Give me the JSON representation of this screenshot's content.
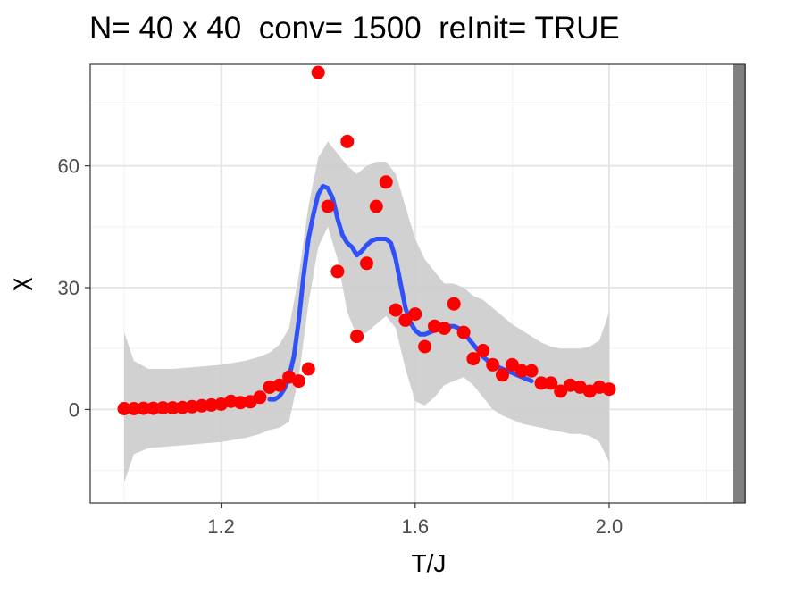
{
  "chart_data": {
    "type": "scatter",
    "title": "N= 40 x 40  conv= 1500  reInit= TRUE",
    "xlabel": "T/J",
    "ylabel": "χ",
    "xlim": [
      0.93,
      2.28
    ],
    "ylim": [
      -23,
      85
    ],
    "x_ticks": [
      1.2,
      1.6,
      2.0
    ],
    "x_tick_labels": [
      "1.2",
      "1.6",
      "2.0"
    ],
    "y_ticks": [
      0,
      30,
      60
    ],
    "y_tick_labels": [
      "0",
      "30",
      "60"
    ],
    "grid": true,
    "legend": "none",
    "vertical_line": {
      "x": 2.269,
      "color": "#808080"
    },
    "colors": {
      "points": "#ff0000",
      "smooth_line": "#3050f8",
      "confidence_band": "#cccccc",
      "vline": "#808080",
      "grid_major": "#e6e6e6",
      "grid_minor": "#f2f2f2",
      "panel_border": "#333333"
    },
    "series": [
      {
        "type": "points",
        "x": [
          1.0,
          1.02,
          1.04,
          1.06,
          1.08,
          1.1,
          1.12,
          1.14,
          1.16,
          1.18,
          1.2,
          1.22,
          1.24,
          1.26,
          1.28,
          1.3,
          1.32,
          1.34,
          1.36,
          1.38,
          1.4,
          1.42,
          1.44,
          1.46,
          1.48,
          1.5,
          1.52,
          1.54,
          1.56,
          1.58,
          1.6,
          1.62,
          1.64,
          1.66,
          1.68,
          1.7,
          1.72,
          1.74,
          1.76,
          1.78,
          1.8,
          1.82,
          1.84,
          1.86,
          1.88,
          1.9,
          1.92,
          1.94,
          1.96,
          1.98,
          2.0
        ],
        "y": [
          0.2,
          0.2,
          0.3,
          0.3,
          0.4,
          0.4,
          0.5,
          0.7,
          0.9,
          1.1,
          1.3,
          2.0,
          1.7,
          1.9,
          3.0,
          5.5,
          6.0,
          8.0,
          7.0,
          10.0,
          83.0,
          50.0,
          34.0,
          66.0,
          18.0,
          36.0,
          50.0,
          56.0,
          24.5,
          22.0,
          23.5,
          15.5,
          20.5,
          20.0,
          26.0,
          19.0,
          12.5,
          14.5,
          11.0,
          8.5,
          11.0,
          9.5,
          9.5,
          6.5,
          6.5,
          4.5,
          6.0,
          5.5,
          4.5,
          5.5,
          5.0
        ]
      },
      {
        "type": "smooth",
        "x": [
          1.3,
          1.31,
          1.32,
          1.33,
          1.34,
          1.35,
          1.36,
          1.37,
          1.38,
          1.39,
          1.4,
          1.41,
          1.42,
          1.43,
          1.44,
          1.45,
          1.46,
          1.47,
          1.48,
          1.49,
          1.5,
          1.51,
          1.52,
          1.53,
          1.54,
          1.55,
          1.56,
          1.57,
          1.58,
          1.59,
          1.6,
          1.61,
          1.62,
          1.63,
          1.64,
          1.65,
          1.66,
          1.67,
          1.68,
          1.69,
          1.7,
          1.71,
          1.72,
          1.73,
          1.74,
          1.75,
          1.76,
          1.77,
          1.78,
          1.79,
          1.8,
          1.81,
          1.82,
          1.83,
          1.84
        ],
        "y": [
          2.5,
          2.5,
          3.2,
          5.0,
          8.0,
          13.0,
          22.0,
          33.0,
          42.0,
          48.0,
          53.0,
          55.0,
          54.5,
          52.0,
          47.0,
          43.0,
          41.0,
          40.0,
          38.0,
          39.0,
          40.5,
          41.5,
          42.0,
          42.0,
          42.0,
          41.0,
          37.0,
          31.0,
          25.0,
          21.5,
          19.5,
          18.5,
          18.5,
          19.0,
          19.5,
          20.0,
          20.5,
          20.5,
          20.5,
          20.0,
          19.0,
          17.5,
          16.0,
          14.5,
          13.0,
          12.0,
          11.0,
          10.5,
          10.0,
          9.5,
          9.0,
          8.5,
          8.0,
          7.5,
          7.0
        ]
      }
    ]
  }
}
